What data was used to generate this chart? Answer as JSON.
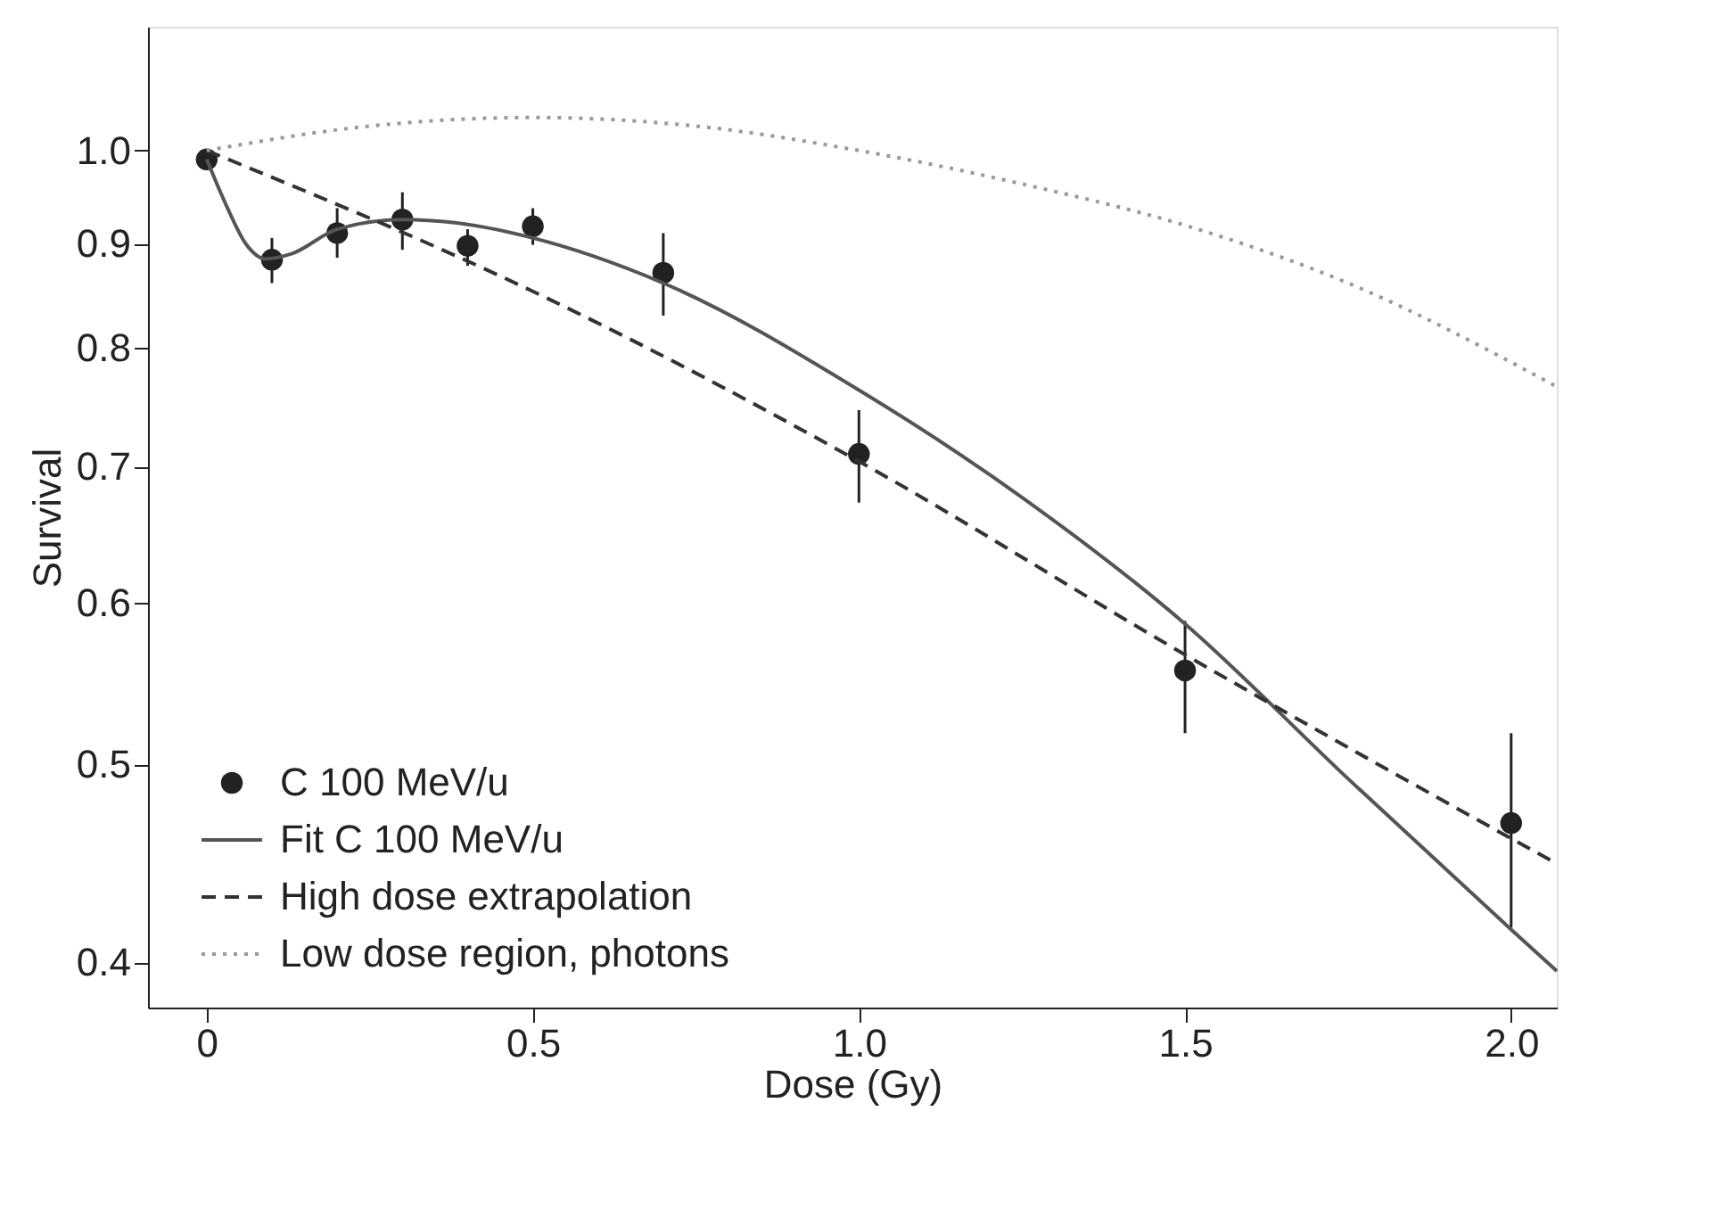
{
  "chart_data": {
    "type": "scatter",
    "xlabel": "Dose (Gy)",
    "ylabel": "Survival",
    "log": "y",
    "grid": false,
    "legend": "bottom left",
    "xlim": [
      -0.09,
      2.07
    ],
    "ylim": [
      0.38,
      1.15
    ],
    "xticks": [
      {
        "value": 0,
        "label": "0"
      },
      {
        "value": 0.5,
        "label": "0.5"
      },
      {
        "value": 1,
        "label": "1.0"
      },
      {
        "value": 1.5,
        "label": "1.5"
      },
      {
        "value": 2,
        "label": "2.0"
      }
    ],
    "yticks": [
      {
        "value": 0.4,
        "label": "0.4"
      },
      {
        "value": 0.5,
        "label": "0.5"
      },
      {
        "value": 0.6,
        "label": "0.6"
      },
      {
        "value": 0.7,
        "label": "0.7"
      },
      {
        "value": 0.8,
        "label": "0.8"
      },
      {
        "value": 0.9,
        "label": "0.9"
      },
      {
        "value": 1,
        "label": "1.0"
      }
    ],
    "series": [
      {
        "name": "C 100 MeV/u",
        "marker": "circle",
        "color": "#222222",
        "x": [
          0,
          0.1,
          0.2,
          0.3,
          0.4,
          0.5,
          0.7,
          1.0,
          1.5,
          2.0
        ],
        "values": [
          0.99,
          0.884,
          0.911,
          0.925,
          0.898,
          0.918,
          0.871,
          0.71,
          0.556,
          0.468
        ],
        "errors": [
          null,
          [
            0.861,
            0.906
          ],
          [
            0.886,
            0.937
          ],
          [
            0.894,
            0.954
          ],
          [
            0.878,
            0.915
          ],
          [
            0.899,
            0.937
          ],
          [
            0.83,
            0.911
          ],
          [
            0.672,
            0.746
          ],
          [
            0.518,
            0.588
          ],
          [
            0.416,
            0.518
          ]
        ]
      },
      {
        "name": "Fit C 100 MeV/u",
        "type": "line",
        "line_style": "solid",
        "color": "#555555",
        "x": [
          0,
          0.03,
          0.06,
          0.09,
          0.13,
          0.2,
          0.3,
          0.4,
          0.5,
          0.7,
          1.0,
          1.25,
          1.5,
          1.75,
          2.0,
          2.07
        ],
        "values": [
          0.99,
          0.94,
          0.9,
          0.885,
          0.89,
          0.915,
          0.925,
          0.92,
          0.906,
          0.861,
          0.763,
          0.676,
          0.586,
          0.492,
          0.415,
          0.396
        ]
      },
      {
        "name": "High dose extrapolation",
        "type": "line",
        "line_style": "dashed",
        "color": "#333333",
        "x": [
          0,
          0.5,
          1.0,
          1.5,
          2.07
        ],
        "values": [
          1.0,
          0.853,
          0.704,
          0.566,
          0.447
        ]
      },
      {
        "name": "Low dose region, photons",
        "type": "line",
        "line_style": "dotted",
        "color": "#999999",
        "x": [
          0,
          0.25,
          0.5,
          0.75,
          1.0,
          1.25,
          1.5,
          1.75,
          2.07
        ],
        "values": [
          1.0,
          1.028,
          1.038,
          1.028,
          1.0,
          0.963,
          0.919,
          0.861,
          0.766
        ]
      }
    ]
  }
}
